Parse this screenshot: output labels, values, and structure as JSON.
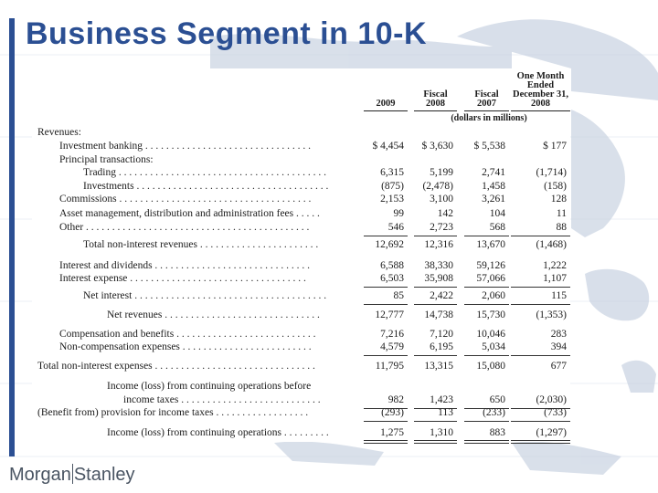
{
  "title": "Business Segment in 10-K",
  "logo": {
    "left": "Morgan",
    "right": "Stanley"
  },
  "columns": [
    {
      "lines": [
        "2009"
      ]
    },
    {
      "lines": [
        "Fiscal",
        "2008"
      ]
    },
    {
      "lines": [
        "Fiscal",
        "2007"
      ]
    },
    {
      "lines": [
        "One Month",
        "Ended",
        "December 31,",
        "2008"
      ]
    }
  ],
  "units": "(dollars in millions)",
  "rows": [
    {
      "label": "Revenues:",
      "indent": 0,
      "values": [
        "",
        "",
        "",
        ""
      ]
    },
    {
      "label": "Investment banking . . . . . . . . . . . . . . . . . . . . . . . . . . . . . . . .",
      "indent": 1,
      "values": [
        "$ 4,454",
        "$ 3,630",
        "$ 5,538",
        "$      177"
      ]
    },
    {
      "label": "Principal transactions:",
      "indent": 1,
      "values": [
        "",
        "",
        "",
        ""
      ]
    },
    {
      "label": "Trading . . . . . . . . . . . . . . . . . . . . . . . . . . . . . . . . . . . . . . . .",
      "indent": 2,
      "values": [
        "6,315",
        "5,199",
        "2,741",
        "(1,714)"
      ]
    },
    {
      "label": "Investments . . . . . . . . . . . . . . . . . . . . . . . . . . . . . . . . . . . . .",
      "indent": 2,
      "values": [
        "(875)",
        "(2,478)",
        "1,458",
        "(158)"
      ]
    },
    {
      "label": "Commissions . . . . . . . . . . . . . . . . . . . . . . . . . . . . . . . . . . . . .",
      "indent": 1,
      "values": [
        "2,153",
        "3,100",
        "3,261",
        "128"
      ]
    },
    {
      "label": "Asset management, distribution and administration fees . . . . .",
      "indent": 1,
      "values": [
        "99",
        "142",
        "104",
        "11"
      ]
    },
    {
      "label": "Other . . . . . . . . . . . . . . . . . . . . . . . . . . . . . . . . . . . . . . . . . . .",
      "indent": 1,
      "values": [
        "546",
        "2,723",
        "568",
        "88"
      ]
    },
    {
      "label": "Total non-interest revenues . . . . . . . . . . . . . . . . . . . . . . .",
      "indent": 2,
      "values": [
        "12,692",
        "12,316",
        "13,670",
        "(1,468)"
      ]
    },
    {
      "label": "Interest and dividends . . . . . . . . . . . . . . . . . . . . . . . . . . . . . .",
      "indent": 1,
      "values": [
        "6,588",
        "38,330",
        "59,126",
        "1,222"
      ]
    },
    {
      "label": "Interest expense . . . . . . . . . . . . . . . . . . . . . . . . . . . . . . . . . .",
      "indent": 1,
      "values": [
        "6,503",
        "35,908",
        "57,066",
        "1,107"
      ]
    },
    {
      "label": "Net interest . . . . . . . . . . . . . . . . . . . . . . . . . . . . . . . . . . . . .",
      "indent": 2,
      "values": [
        "85",
        "2,422",
        "2,060",
        "115"
      ]
    },
    {
      "label": "Net revenues . . . . . . . . . . . . . . . . . . . . . . . . . . . . . .",
      "indent": 3,
      "values": [
        "12,777",
        "14,738",
        "15,730",
        "(1,353)"
      ]
    },
    {
      "label": "Compensation and benefits . . . . . . . . . . . . . . . . . . . . . . . . . . .",
      "indent": 1,
      "values": [
        "7,216",
        "7,120",
        "10,046",
        "283"
      ]
    },
    {
      "label": "Non-compensation expenses . . . . . . . . . . . . . . . . . . . . . . . . .",
      "indent": 1,
      "values": [
        "4,579",
        "6,195",
        "5,034",
        "394"
      ]
    },
    {
      "label": "Total non-interest expenses . . . . . . . . . . . . . . . . . . . . . . . . . . . . . . .",
      "indent": 0,
      "values": [
        "11,795",
        "13,315",
        "15,080",
        "677"
      ]
    },
    {
      "label": "Income (loss) from continuing operations before",
      "indent": 3,
      "values": [
        "",
        "",
        "",
        ""
      ]
    },
    {
      "label": "income taxes . . . . . . . . . . . . . . . . . . . . . . . . . . .",
      "indent": 4,
      "values": [
        "982",
        "1,423",
        "650",
        "(2,030)"
      ]
    },
    {
      "label": "(Benefit from) provision for income taxes . . . . . . . . . . . . . . . . . .",
      "indent": 0,
      "values": [
        "(293)",
        "113",
        "(233)",
        "(733)"
      ]
    },
    {
      "label": "Income (loss) from continuing operations . . . . . . . . .",
      "indent": 3,
      "values": [
        "1,275",
        "1,310",
        "883",
        "(1,297)"
      ]
    }
  ]
}
